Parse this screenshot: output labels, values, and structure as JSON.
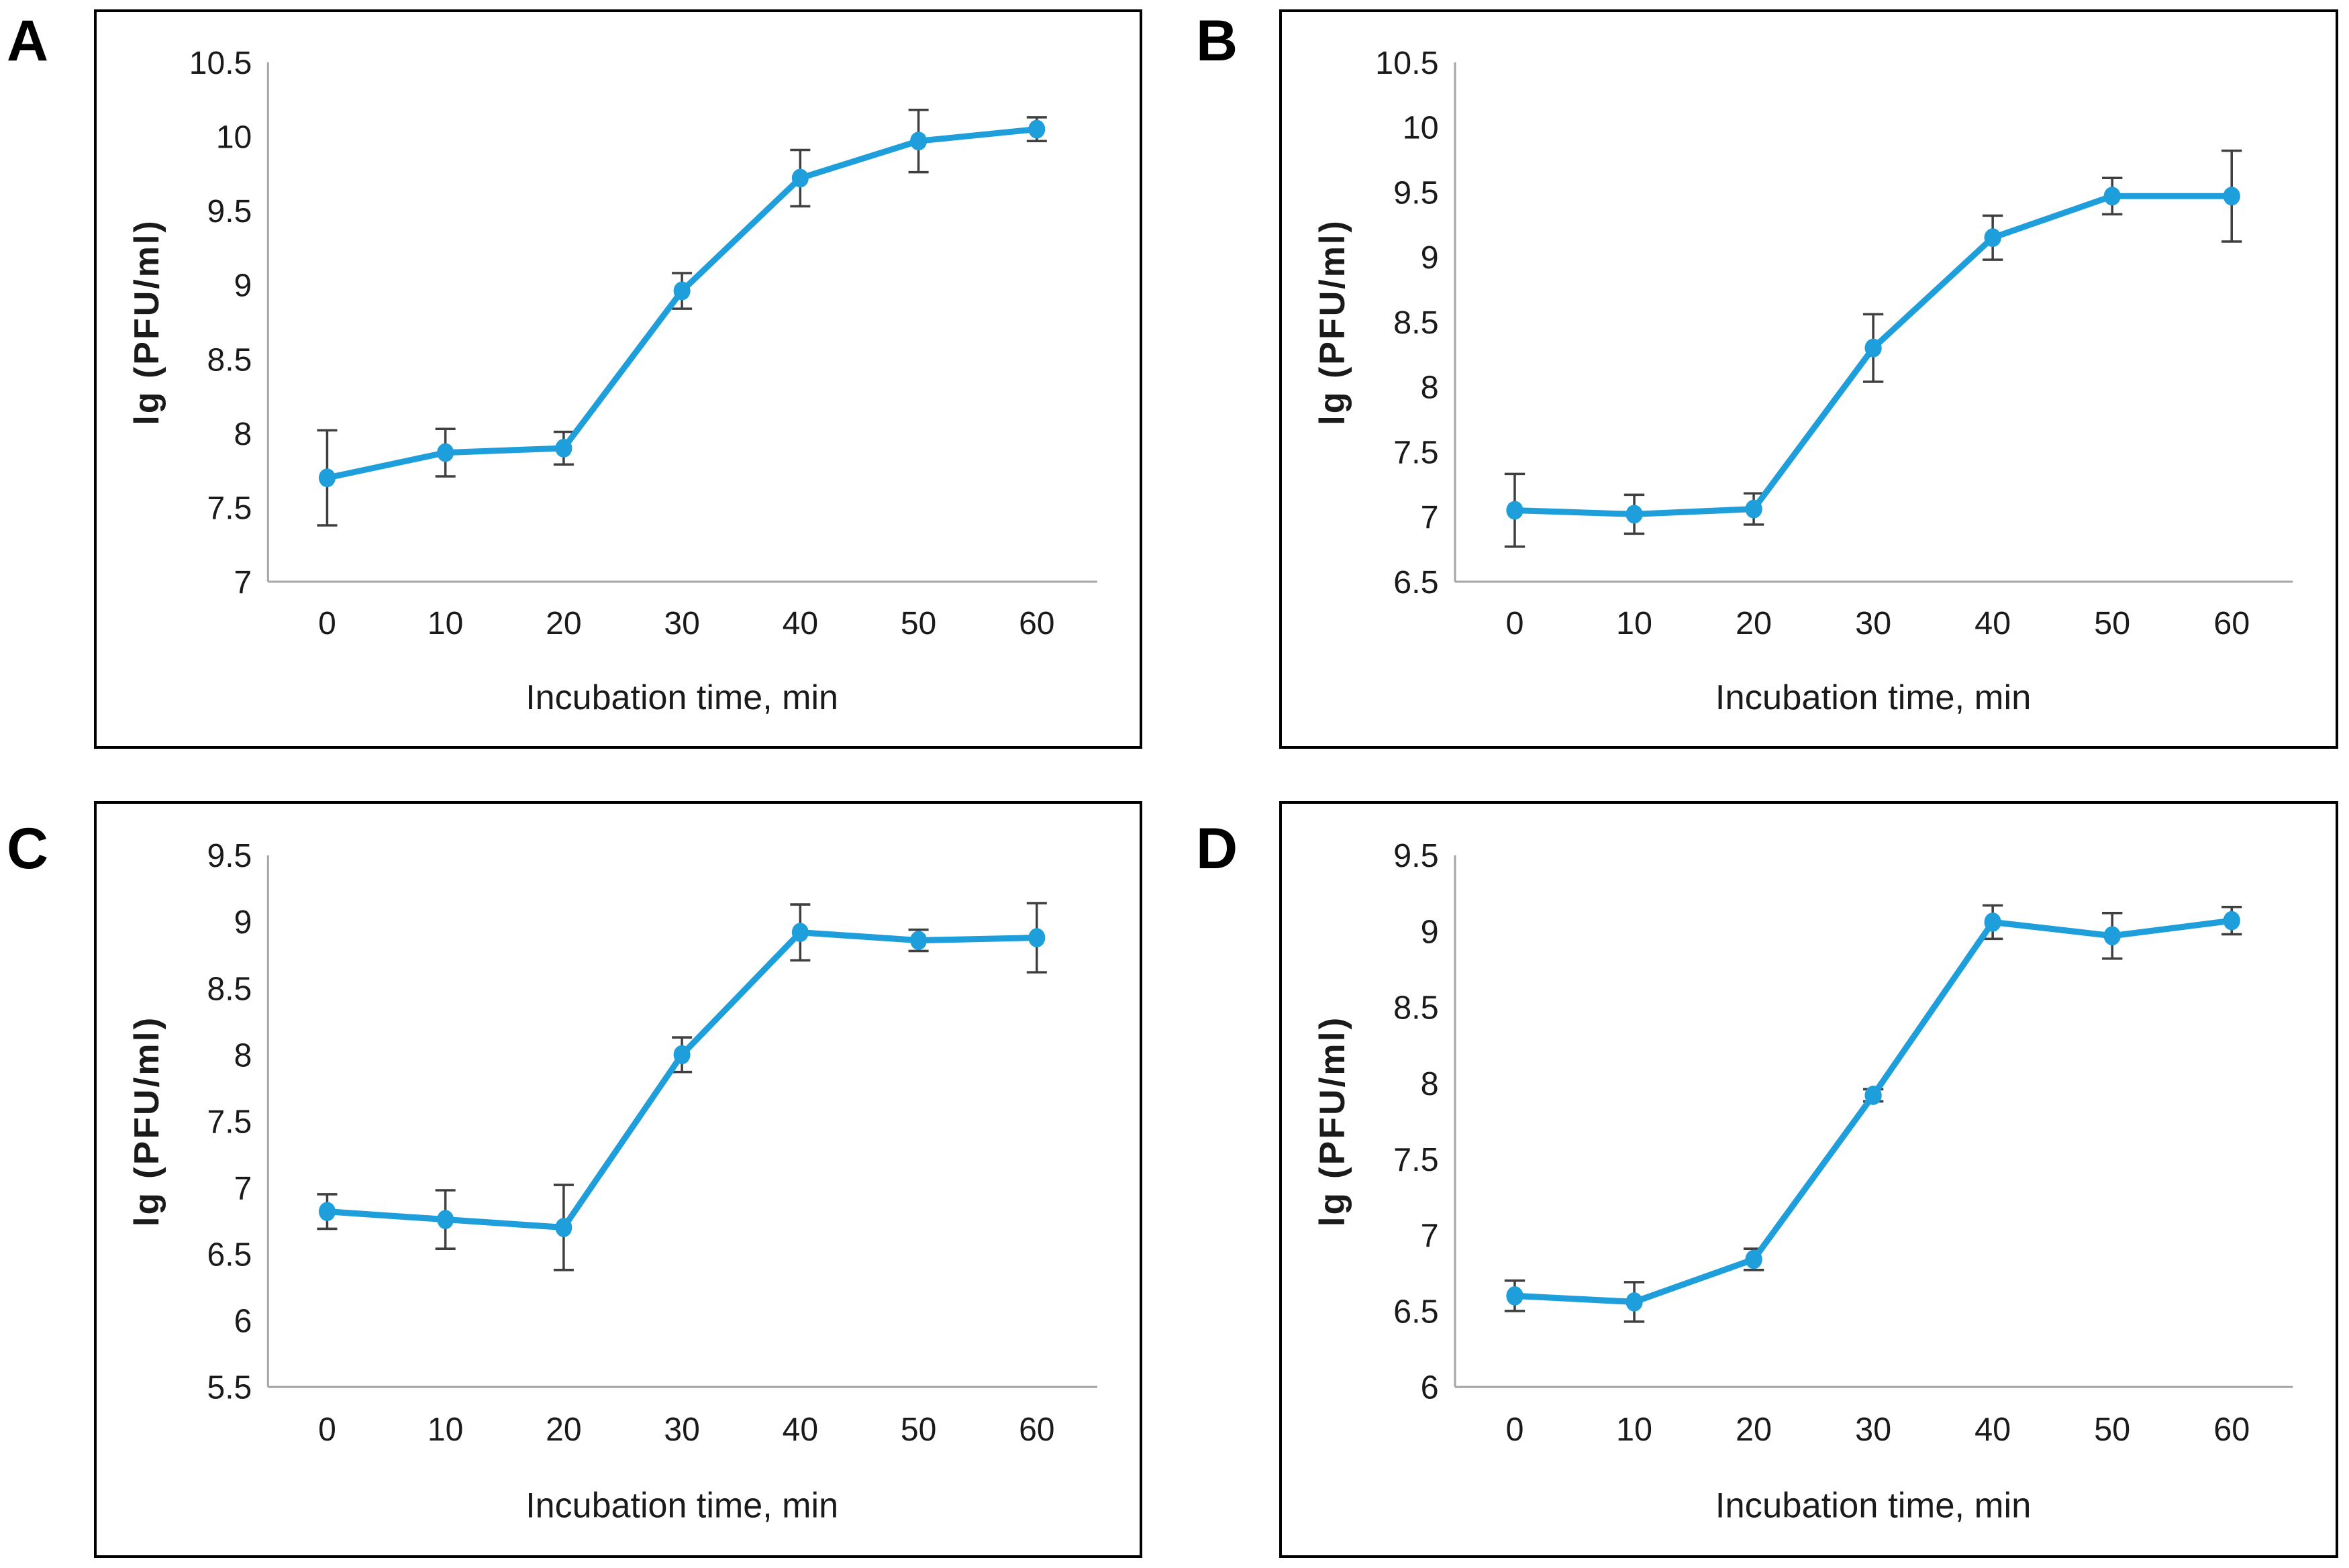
{
  "figure": {
    "xlabel": "Incubation time, min",
    "ylabel": "lg (PFU/ml)"
  },
  "colors": {
    "line": "#1E9FDB",
    "marker": "#1E9FDB",
    "error_bar": "#3F3F3F",
    "axis_line": "#A6A6A6",
    "text": "#1A1A1A",
    "panel_border": "#000000"
  },
  "chart_data": [
    {
      "type": "line",
      "panel": "A",
      "title": "",
      "xlabel": "Incubation time, min",
      "ylabel": "lg (PFU/ml)",
      "categories": [
        0,
        10,
        20,
        30,
        40,
        50,
        60
      ],
      "values": [
        7.7,
        7.87,
        7.9,
        8.96,
        9.72,
        9.97,
        10.05
      ],
      "errors": [
        0.32,
        0.16,
        0.11,
        0.12,
        0.19,
        0.21,
        0.08
      ],
      "ylim": [
        7,
        10.5
      ],
      "ytick_step": 0.5,
      "grid": false,
      "legend_position": "none",
      "marker": "circle"
    },
    {
      "type": "line",
      "panel": "B",
      "title": "",
      "xlabel": "Incubation time, min",
      "ylabel": "lg (PFU/ml)",
      "categories": [
        0,
        10,
        20,
        30,
        40,
        50,
        60
      ],
      "values": [
        7.05,
        7.02,
        7.06,
        8.3,
        9.15,
        9.47,
        9.47
      ],
      "errors": [
        0.28,
        0.15,
        0.12,
        0.26,
        0.17,
        0.14,
        0.35
      ],
      "ylim": [
        6.5,
        10.5
      ],
      "ytick_step": 0.5,
      "grid": false,
      "legend_position": "none",
      "marker": "circle"
    },
    {
      "type": "line",
      "panel": "C",
      "title": "",
      "xlabel": "Incubation time, min",
      "ylabel": "lg (PFU/ml)",
      "categories": [
        0,
        10,
        20,
        30,
        40,
        50,
        60
      ],
      "values": [
        6.82,
        6.76,
        6.7,
        8.0,
        8.92,
        8.86,
        8.88
      ],
      "errors": [
        0.13,
        0.22,
        0.32,
        0.13,
        0.21,
        0.08,
        0.26
      ],
      "ylim": [
        5.5,
        9.5
      ],
      "ytick_step": 0.5,
      "grid": false,
      "legend_position": "none",
      "marker": "circle"
    },
    {
      "type": "line",
      "panel": "D",
      "title": "",
      "xlabel": "Incubation time, min",
      "ylabel": "lg (PFU/ml)",
      "categories": [
        0,
        10,
        20,
        30,
        40,
        50,
        60
      ],
      "values": [
        6.6,
        6.56,
        6.84,
        7.92,
        9.06,
        8.97,
        9.07
      ],
      "errors": [
        0.1,
        0.13,
        0.07,
        0.04,
        0.11,
        0.15,
        0.09
      ],
      "ylim": [
        6,
        9.5
      ],
      "ytick_step": 0.5,
      "grid": false,
      "legend_position": "none",
      "marker": "circle"
    }
  ]
}
